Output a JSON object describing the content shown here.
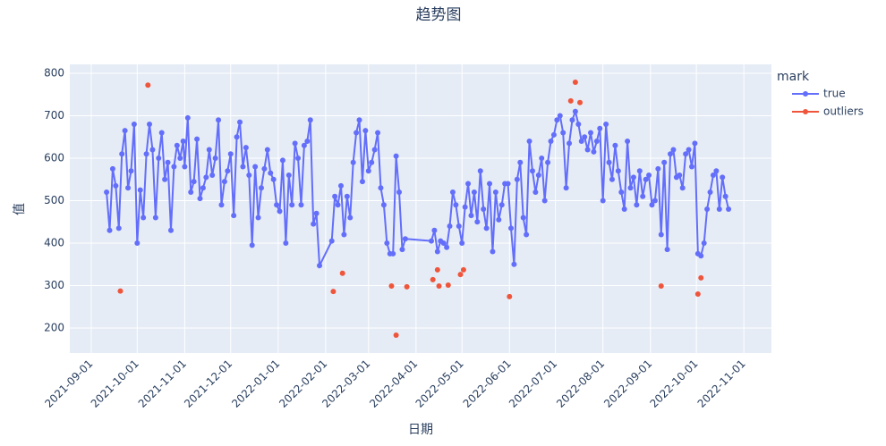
{
  "chart_data": {
    "type": "line",
    "title": "趋势图",
    "x_label": "日期",
    "y_label": "值",
    "legend_title": "mark",
    "legend_position": "right",
    "grid": true,
    "xlim": [
      "2021-08-18",
      "2022-11-19"
    ],
    "xticks": [
      "2021-09-01",
      "2021-10-01",
      "2021-11-01",
      "2021-12-01",
      "2022-01-01",
      "2022-02-01",
      "2022-03-01",
      "2022-04-01",
      "2022-05-01",
      "2022-06-01",
      "2022-07-01",
      "2022-08-01",
      "2022-09-01",
      "2022-10-01",
      "2022-11-01"
    ],
    "ylim": [
      141,
      821
    ],
    "yticks": [
      200,
      300,
      400,
      500,
      600,
      700,
      800
    ],
    "series": [
      {
        "name": "true",
        "color": "#636efa",
        "mode": "lines+markers",
        "x": [
          "2021-09-11",
          "2021-09-13",
          "2021-09-15",
          "2021-09-17",
          "2021-09-19",
          "2021-09-21",
          "2021-09-23",
          "2021-09-25",
          "2021-09-27",
          "2021-09-29",
          "2021-10-01",
          "2021-10-03",
          "2021-10-05",
          "2021-10-07",
          "2021-10-09",
          "2021-10-11",
          "2021-10-13",
          "2021-10-15",
          "2021-10-17",
          "2021-10-19",
          "2021-10-21",
          "2021-10-23",
          "2021-10-25",
          "2021-10-27",
          "2021-10-29",
          "2021-10-31",
          "2021-11-01",
          "2021-11-03",
          "2021-11-05",
          "2021-11-07",
          "2021-11-09",
          "2021-11-11",
          "2021-11-13",
          "2021-11-15",
          "2021-11-17",
          "2021-11-19",
          "2021-11-21",
          "2021-11-23",
          "2021-11-25",
          "2021-11-27",
          "2021-11-29",
          "2021-12-01",
          "2021-12-03",
          "2021-12-05",
          "2021-12-07",
          "2021-12-09",
          "2021-12-11",
          "2021-12-13",
          "2021-12-15",
          "2021-12-17",
          "2021-12-19",
          "2021-12-21",
          "2021-12-23",
          "2021-12-25",
          "2021-12-27",
          "2021-12-29",
          "2021-12-31",
          "2022-01-02",
          "2022-01-04",
          "2022-01-06",
          "2022-01-08",
          "2022-01-10",
          "2022-01-12",
          "2022-01-14",
          "2022-01-16",
          "2022-01-18",
          "2022-01-20",
          "2022-01-22",
          "2022-01-24",
          "2022-01-26",
          "2022-01-28",
          "2022-02-05",
          "2022-02-07",
          "2022-02-09",
          "2022-02-11",
          "2022-02-13",
          "2022-02-15",
          "2022-02-17",
          "2022-02-19",
          "2022-02-21",
          "2022-02-23",
          "2022-02-25",
          "2022-02-27",
          "2022-03-01",
          "2022-03-03",
          "2022-03-05",
          "2022-03-07",
          "2022-03-09",
          "2022-03-11",
          "2022-03-13",
          "2022-03-15",
          "2022-03-17",
          "2022-03-19",
          "2022-03-21",
          "2022-03-23",
          "2022-03-25",
          "2022-04-11",
          "2022-04-13",
          "2022-04-15",
          "2022-04-17",
          "2022-04-19",
          "2022-04-21",
          "2022-04-23",
          "2022-04-25",
          "2022-04-27",
          "2022-04-29",
          "2022-05-01",
          "2022-05-03",
          "2022-05-05",
          "2022-05-07",
          "2022-05-09",
          "2022-05-11",
          "2022-05-13",
          "2022-05-15",
          "2022-05-17",
          "2022-05-19",
          "2022-05-21",
          "2022-05-23",
          "2022-05-25",
          "2022-05-27",
          "2022-05-29",
          "2022-05-31",
          "2022-06-02",
          "2022-06-04",
          "2022-06-06",
          "2022-06-08",
          "2022-06-10",
          "2022-06-12",
          "2022-06-14",
          "2022-06-16",
          "2022-06-18",
          "2022-06-20",
          "2022-06-22",
          "2022-06-24",
          "2022-06-26",
          "2022-06-28",
          "2022-06-30",
          "2022-07-02",
          "2022-07-04",
          "2022-07-06",
          "2022-07-08",
          "2022-07-10",
          "2022-07-12",
          "2022-07-14",
          "2022-07-16",
          "2022-07-18",
          "2022-07-20",
          "2022-07-22",
          "2022-07-24",
          "2022-07-26",
          "2022-07-28",
          "2022-07-30",
          "2022-08-01",
          "2022-08-03",
          "2022-08-05",
          "2022-08-07",
          "2022-08-09",
          "2022-08-11",
          "2022-08-13",
          "2022-08-15",
          "2022-08-17",
          "2022-08-19",
          "2022-08-21",
          "2022-08-23",
          "2022-08-25",
          "2022-08-27",
          "2022-08-29",
          "2022-08-31",
          "2022-09-02",
          "2022-09-04",
          "2022-09-06",
          "2022-09-08",
          "2022-09-10",
          "2022-09-12",
          "2022-09-14",
          "2022-09-16",
          "2022-09-18",
          "2022-09-20",
          "2022-09-22",
          "2022-09-24",
          "2022-09-26",
          "2022-09-28",
          "2022-09-30",
          "2022-10-02",
          "2022-10-04",
          "2022-10-06",
          "2022-10-08",
          "2022-10-10",
          "2022-10-12",
          "2022-10-14",
          "2022-10-16",
          "2022-10-18",
          "2022-10-20",
          "2022-10-22"
        ],
        "values": [
          520,
          430,
          575,
          535,
          435,
          610,
          665,
          530,
          570,
          680,
          400,
          525,
          460,
          610,
          680,
          620,
          460,
          600,
          660,
          550,
          590,
          430,
          580,
          630,
          600,
          640,
          580,
          695,
          520,
          545,
          645,
          505,
          530,
          555,
          620,
          560,
          600,
          690,
          490,
          545,
          570,
          610,
          465,
          650,
          685,
          580,
          625,
          560,
          395,
          580,
          460,
          530,
          575,
          620,
          565,
          550,
          490,
          475,
          595,
          400,
          560,
          490,
          635,
          600,
          490,
          630,
          640,
          690,
          445,
          470,
          347,
          405,
          510,
          490,
          535,
          420,
          510,
          460,
          590,
          660,
          690,
          545,
          665,
          570,
          590,
          620,
          660,
          530,
          490,
          400,
          375,
          375,
          605,
          520,
          385,
          410,
          405,
          430,
          380,
          405,
          400,
          390,
          440,
          520,
          490,
          440,
          400,
          485,
          540,
          465,
          520,
          450,
          570,
          480,
          435,
          540,
          380,
          520,
          455,
          490,
          540,
          540,
          435,
          350,
          550,
          590,
          460,
          420,
          640,
          570,
          520,
          560,
          600,
          500,
          590,
          640,
          655,
          690,
          700,
          660,
          530,
          635,
          690,
          710,
          680,
          640,
          650,
          620,
          660,
          615,
          640,
          670,
          500,
          680,
          590,
          550,
          630,
          570,
          520,
          480,
          640,
          530,
          555,
          490,
          570,
          510,
          550,
          560,
          490,
          500,
          575,
          420,
          590,
          385,
          610,
          620,
          555,
          560,
          530,
          610,
          620,
          580,
          635,
          375,
          370,
          400,
          480,
          520,
          560,
          570,
          480,
          555,
          510,
          480
        ]
      },
      {
        "name": "outliers",
        "color": "#EF553B",
        "mode": "markers",
        "x": [
          "2021-09-20",
          "2021-10-08",
          "2022-02-06",
          "2022-02-12",
          "2022-03-16",
          "2022-03-19",
          "2022-03-26",
          "2022-04-12",
          "2022-04-15",
          "2022-04-16",
          "2022-04-22",
          "2022-04-30",
          "2022-05-02",
          "2022-06-01",
          "2022-07-11",
          "2022-07-14",
          "2022-07-17",
          "2022-09-08",
          "2022-10-02",
          "2022-10-04"
        ],
        "values": [
          287,
          772,
          286,
          329,
          299,
          183,
          297,
          314,
          337,
          299,
          301,
          326,
          337,
          274,
          735,
          779,
          731,
          299,
          280,
          318
        ]
      }
    ]
  }
}
